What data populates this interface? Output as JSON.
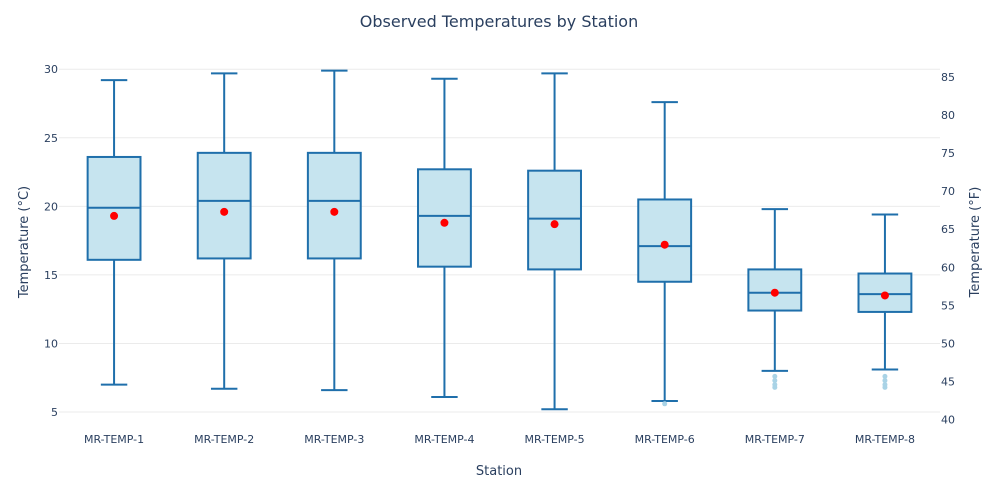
{
  "chart_data": {
    "type": "box",
    "title": "Observed Temperatures by Station",
    "xlabel": "Station",
    "ylabel": "Temperature (°C)",
    "y2label": "Temperature (°F)",
    "ylim": [
      4.2,
      31.4
    ],
    "y2ticks": [
      40,
      45,
      50,
      55,
      60,
      65,
      70,
      75,
      80,
      85
    ],
    "yticks": [
      5,
      10,
      15,
      20,
      25,
      30
    ],
    "grid": true,
    "legend": "none",
    "colors": {
      "box_fill": "#c6e4ef",
      "box_line": "#1f6fab",
      "mean": "#ff0000",
      "outlier": "#a9d3e6"
    },
    "categories": [
      "MR-TEMP-1",
      "MR-TEMP-2",
      "MR-TEMP-3",
      "MR-TEMP-4",
      "MR-TEMP-5",
      "MR-TEMP-6",
      "MR-TEMP-7",
      "MR-TEMP-8"
    ],
    "boxes": [
      {
        "min": 7.0,
        "q1": 16.1,
        "median": 19.9,
        "q3": 23.6,
        "max": 29.2,
        "mean": 19.3,
        "outliers": []
      },
      {
        "min": 6.7,
        "q1": 16.2,
        "median": 20.4,
        "q3": 23.9,
        "max": 29.7,
        "mean": 19.6,
        "outliers": []
      },
      {
        "min": 6.6,
        "q1": 16.2,
        "median": 20.4,
        "q3": 23.9,
        "max": 29.9,
        "mean": 19.6,
        "outliers": []
      },
      {
        "min": 6.1,
        "q1": 15.6,
        "median": 19.3,
        "q3": 22.7,
        "max": 29.3,
        "mean": 18.8,
        "outliers": []
      },
      {
        "min": 5.2,
        "q1": 15.4,
        "median": 19.1,
        "q3": 22.6,
        "max": 29.7,
        "mean": 18.7,
        "outliers": []
      },
      {
        "min": 5.8,
        "q1": 14.5,
        "median": 17.1,
        "q3": 20.5,
        "max": 27.6,
        "mean": 17.2,
        "outliers": [
          5.6
        ]
      },
      {
        "min": 8.0,
        "q1": 12.4,
        "median": 13.7,
        "q3": 15.4,
        "max": 19.8,
        "mean": 13.7,
        "outliers": [
          7.6,
          7.3,
          7.0,
          6.8
        ]
      },
      {
        "min": 8.1,
        "q1": 12.3,
        "median": 13.6,
        "q3": 15.1,
        "max": 19.4,
        "mean": 13.5,
        "outliers": [
          7.6,
          7.3,
          7.0,
          6.8
        ]
      }
    ]
  }
}
